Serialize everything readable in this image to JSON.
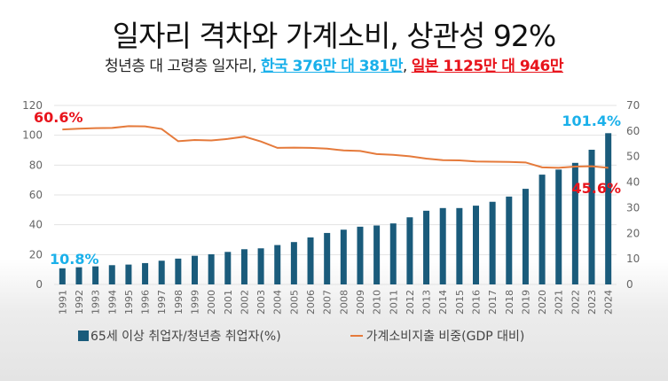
{
  "title": "일자리 격차와 가계소비, 상관성 92%",
  "subtitle": {
    "prefix": "청년층 대 고령층 일자리, ",
    "korea": "한국 376만 대 381만",
    "sep": ", ",
    "japan": "일본 1125만 대 946만"
  },
  "colors": {
    "bar": "#1a5b7b",
    "line": "#e57a3b",
    "annotation_blue": "#1ab0ea",
    "annotation_red": "#e8141c"
  },
  "chart_data": {
    "type": "bar+line",
    "categories": [
      "1991",
      "1992",
      "1993",
      "1994",
      "1995",
      "1996",
      "1997",
      "1998",
      "1999",
      "2000",
      "2001",
      "2002",
      "2003",
      "2004",
      "2005",
      "2006",
      "2007",
      "2008",
      "2009",
      "2010",
      "2011",
      "2012",
      "2013",
      "2014",
      "2015",
      "2016",
      "2017",
      "2018",
      "2019",
      "2020",
      "2021",
      "2022",
      "2023",
      "2024"
    ],
    "series": [
      {
        "name": "65세 이상 취업자/청년층 취업자(%)",
        "type": "bar",
        "axis": "left",
        "values": [
          10.8,
          11.5,
          12.1,
          12.9,
          13.3,
          14.3,
          15.9,
          17.3,
          19.2,
          20.2,
          21.8,
          23.6,
          24.2,
          26.4,
          28.4,
          31.5,
          34.5,
          36.7,
          38.7,
          39.5,
          40.9,
          45.0,
          49.4,
          51.2,
          51.2,
          52.8,
          55.4,
          58.9,
          64.1,
          73.6,
          77.0,
          81.5,
          90.3,
          101.4
        ]
      },
      {
        "name": "가계소비지출 비중(GDP 대비)",
        "type": "line",
        "axis": "right",
        "values": [
          60.6,
          60.9,
          61.1,
          61.2,
          61.9,
          61.8,
          60.8,
          56.0,
          56.5,
          56.3,
          56.9,
          57.8,
          55.9,
          53.4,
          53.5,
          53.4,
          53.1,
          52.4,
          52.2,
          51.0,
          50.7,
          50.1,
          49.2,
          48.6,
          48.5,
          48.1,
          48.0,
          47.9,
          47.7,
          45.8,
          45.6,
          46.1,
          46.2,
          45.6
        ]
      }
    ],
    "y_left": {
      "range": [
        0,
        120
      ],
      "ticks": [
        "0",
        "20",
        "40",
        "60",
        "80",
        "100",
        "120"
      ]
    },
    "y_right": {
      "range": [
        0,
        70
      ],
      "ticks": [
        "0",
        "10",
        "20",
        "30",
        "40",
        "50",
        "60",
        "70"
      ]
    },
    "grid": true,
    "legend_position": "bottom",
    "annotations": {
      "line_start": "60.6%",
      "bar_start": "10.8%",
      "bar_end": "101.4%",
      "line_end": "45.6%"
    }
  }
}
